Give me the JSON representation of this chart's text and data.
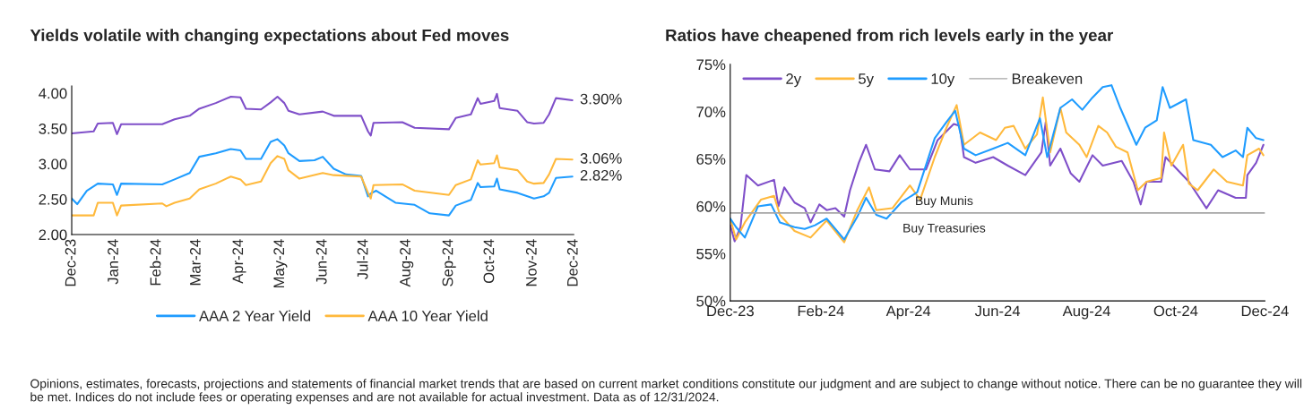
{
  "chart_data": [
    {
      "type": "line",
      "title": "Yields volatile with changing expectations about Fed moves",
      "ylim": [
        2.0,
        4.1
      ],
      "yticks": [
        {
          "value": 2.0,
          "label": "2.00"
        },
        {
          "value": 2.5,
          "label": "2.50"
        },
        {
          "value": 3.0,
          "label": "3.00"
        },
        {
          "value": 3.5,
          "label": "3.50"
        },
        {
          "value": 4.0,
          "label": "4.00"
        }
      ],
      "xlim": [
        "2023-12-01",
        "2024-12-01"
      ],
      "xticks": [
        {
          "value": "2023-12-01",
          "label": "Dec-23"
        },
        {
          "value": "2024-01-01",
          "label": "Jan-24"
        },
        {
          "value": "2024-02-01",
          "label": "Feb-24"
        },
        {
          "value": "2024-03-01",
          "label": "Mar-24"
        },
        {
          "value": "2024-04-01",
          "label": "Apr-24"
        },
        {
          "value": "2024-05-01",
          "label": "May-24"
        },
        {
          "value": "2024-06-01",
          "label": "Jun-24"
        },
        {
          "value": "2024-07-01",
          "label": "Jul-24"
        },
        {
          "value": "2024-08-01",
          "label": "Aug-24"
        },
        {
          "value": "2024-09-01",
          "label": "Sep-24"
        },
        {
          "value": "2024-10-01",
          "label": "Oct-24"
        },
        {
          "value": "2024-11-01",
          "label": "Nov-24"
        },
        {
          "value": "2024-12-01",
          "label": "Dec-24"
        }
      ],
      "grid": false,
      "legend": "bottom",
      "series": [
        {
          "color": "#7f4fc9",
          "x": [
            "2023-12-01",
            "2023-12-17",
            "2023-12-20",
            "2023-12-31",
            "2024-01-03",
            "2024-01-06",
            "2024-02-05",
            "2024-02-14",
            "2024-02-25",
            "2024-03-03",
            "2024-03-15",
            "2024-03-26",
            "2024-04-02",
            "2024-04-06",
            "2024-04-17",
            "2024-04-24",
            "2024-04-29",
            "2024-05-04",
            "2024-05-07",
            "2024-05-15",
            "2024-06-01",
            "2024-06-09",
            "2024-06-29",
            "2024-07-04",
            "2024-07-06",
            "2024-07-08",
            "2024-07-29",
            "2024-08-07",
            "2024-09-01",
            "2024-09-06",
            "2024-09-17",
            "2024-09-22",
            "2024-09-24",
            "2024-10-04",
            "2024-10-06",
            "2024-10-08",
            "2024-10-21",
            "2024-10-28",
            "2024-11-02",
            "2024-11-09",
            "2024-11-13",
            "2024-11-18",
            "2024-11-30"
          ],
          "values": [
            3.43,
            3.46,
            3.57,
            3.58,
            3.42,
            3.56,
            3.56,
            3.63,
            3.68,
            3.78,
            3.86,
            3.95,
            3.94,
            3.78,
            3.77,
            3.87,
            3.95,
            3.86,
            3.75,
            3.7,
            3.74,
            3.68,
            3.68,
            3.46,
            3.4,
            3.58,
            3.59,
            3.51,
            3.49,
            3.65,
            3.7,
            3.93,
            3.85,
            3.89,
            3.99,
            3.79,
            3.75,
            3.59,
            3.57,
            3.58,
            3.7,
            3.93,
            3.9
          ]
        },
        {
          "name": "AAA 2 Year Yield",
          "color": "#1f9cff",
          "x": [
            "2023-12-01",
            "2023-12-05",
            "2023-12-12",
            "2023-12-20",
            "2023-12-31",
            "2024-01-03",
            "2024-01-06",
            "2024-02-05",
            "2024-02-14",
            "2024-02-25",
            "2024-03-03",
            "2024-03-15",
            "2024-03-26",
            "2024-04-02",
            "2024-04-06",
            "2024-04-17",
            "2024-04-24",
            "2024-04-29",
            "2024-05-04",
            "2024-05-07",
            "2024-05-15",
            "2024-05-26",
            "2024-06-01",
            "2024-06-09",
            "2024-06-18",
            "2024-06-29",
            "2024-07-04",
            "2024-07-06",
            "2024-07-10",
            "2024-07-24",
            "2024-08-07",
            "2024-08-18",
            "2024-09-01",
            "2024-09-06",
            "2024-09-17",
            "2024-09-22",
            "2024-09-24",
            "2024-10-04",
            "2024-10-06",
            "2024-10-08",
            "2024-10-21",
            "2024-11-02",
            "2024-11-09",
            "2024-11-13",
            "2024-11-18",
            "2024-11-30"
          ],
          "values": [
            2.51,
            2.43,
            2.62,
            2.72,
            2.71,
            2.56,
            2.72,
            2.71,
            2.78,
            2.87,
            3.1,
            3.15,
            3.21,
            3.19,
            3.07,
            3.07,
            3.31,
            3.35,
            3.26,
            3.15,
            3.04,
            3.05,
            3.1,
            2.93,
            2.85,
            2.83,
            2.54,
            2.58,
            2.62,
            2.45,
            2.42,
            2.3,
            2.27,
            2.41,
            2.49,
            2.73,
            2.67,
            2.68,
            2.79,
            2.64,
            2.59,
            2.51,
            2.54,
            2.59,
            2.8,
            2.82
          ]
        },
        {
          "name": "AAA 10 Year Yield",
          "color": "#ffb93c",
          "x": [
            "2023-12-01",
            "2023-12-17",
            "2023-12-20",
            "2023-12-31",
            "2024-01-03",
            "2024-01-06",
            "2024-02-05",
            "2024-02-08",
            "2024-02-14",
            "2024-02-25",
            "2024-03-03",
            "2024-03-15",
            "2024-03-26",
            "2024-04-02",
            "2024-04-06",
            "2024-04-17",
            "2024-04-24",
            "2024-04-29",
            "2024-05-04",
            "2024-05-07",
            "2024-05-15",
            "2024-06-01",
            "2024-06-09",
            "2024-06-29",
            "2024-07-04",
            "2024-07-06",
            "2024-07-08",
            "2024-07-29",
            "2024-08-07",
            "2024-09-01",
            "2024-09-06",
            "2024-09-17",
            "2024-09-22",
            "2024-09-24",
            "2024-10-04",
            "2024-10-06",
            "2024-10-08",
            "2024-10-21",
            "2024-10-28",
            "2024-11-02",
            "2024-11-09",
            "2024-11-13",
            "2024-11-18",
            "2024-11-30"
          ],
          "values": [
            2.27,
            2.27,
            2.45,
            2.45,
            2.27,
            2.41,
            2.44,
            2.4,
            2.45,
            2.51,
            2.64,
            2.72,
            2.82,
            2.78,
            2.7,
            2.75,
            3.01,
            3.11,
            3.07,
            2.91,
            2.79,
            2.87,
            2.84,
            2.82,
            2.59,
            2.51,
            2.7,
            2.71,
            2.62,
            2.56,
            2.7,
            2.78,
            3.05,
            2.99,
            3.01,
            3.12,
            2.95,
            2.91,
            2.75,
            2.72,
            2.73,
            2.85,
            3.07,
            3.06
          ]
        }
      ],
      "annotations": [
        {
          "text": "3.90%",
          "x": "2024-11-30",
          "y": 3.9
        },
        {
          "text": "3.06%",
          "x": "2024-11-30",
          "y": 3.06
        },
        {
          "text": "2.82%",
          "x": "2024-11-30",
          "y": 2.82
        },
        "Opinions, estimates, forecasts, projections and statements of financial market trends that are based on current market conditions constitute our judgment and are subject to change without notice. There can be no guarantee they will be met. Indices do not include fees or operating expenses and are not available for actual investment. Data as of 12/31/2024."
      ]
    },
    {
      "type": "line",
      "title": "Ratios have cheapened from rich levels early in the year",
      "ylim": [
        50,
        75
      ],
      "yticks": [
        {
          "value": 50,
          "label": "50%"
        },
        {
          "value": 55,
          "label": "55%"
        },
        {
          "value": 60,
          "label": "60%"
        },
        {
          "value": 65,
          "label": "65%"
        },
        {
          "value": 70,
          "label": "70%"
        },
        {
          "value": 75,
          "label": "75%"
        }
      ],
      "xlim": [
        "2023-12-01",
        "2024-12-01"
      ],
      "xticks": [
        {
          "value": "2023-12-01",
          "label": "Dec-23"
        },
        {
          "value": "2024-02-01",
          "label": "Feb-24"
        },
        {
          "value": "2024-04-01",
          "label": "Apr-24"
        },
        {
          "value": "2024-06-01",
          "label": "Jun-24"
        },
        {
          "value": "2024-08-01",
          "label": "Aug-24"
        },
        {
          "value": "2024-10-01",
          "label": "Oct-24"
        },
        {
          "value": "2024-12-01",
          "label": "Dec-24"
        }
      ],
      "grid": false,
      "legend": "top left",
      "ref_lines": [
        {
          "axis": "y",
          "value": 59.3,
          "label": "Breakeven",
          "color": "#a6a6a6"
        }
      ],
      "series": [
        {
          "name": "2y",
          "color": "#7f4fc9",
          "x": [
            "2023-12-01",
            "2023-12-04",
            "2023-12-08",
            "2023-12-12",
            "2023-12-20",
            "2023-12-31",
            "2024-01-03",
            "2024-01-07",
            "2024-01-14",
            "2024-01-21",
            "2024-01-25",
            "2024-01-31",
            "2024-02-05",
            "2024-02-11",
            "2024-02-17",
            "2024-02-21",
            "2024-02-27",
            "2024-03-03",
            "2024-03-09",
            "2024-03-19",
            "2024-03-26",
            "2024-04-02",
            "2024-04-13",
            "2024-04-21",
            "2024-05-02",
            "2024-05-06",
            "2024-05-09",
            "2024-05-17",
            "2024-05-29",
            "2024-06-08",
            "2024-06-20",
            "2024-07-01",
            "2024-07-04",
            "2024-07-07",
            "2024-07-14",
            "2024-07-21",
            "2024-07-27",
            "2024-08-05",
            "2024-08-12",
            "2024-08-25",
            "2024-09-02",
            "2024-09-07",
            "2024-09-11",
            "2024-09-21",
            "2024-09-24",
            "2024-10-02",
            "2024-10-10",
            "2024-10-22",
            "2024-10-30",
            "2024-11-11",
            "2024-11-18",
            "2024-11-19",
            "2024-11-25",
            "2024-11-30"
          ],
          "values": [
            58.0,
            56.3,
            57.8,
            63.3,
            62.2,
            62.8,
            60.0,
            62.0,
            60.4,
            59.8,
            58.3,
            60.2,
            59.6,
            59.8,
            58.9,
            61.7,
            64.6,
            66.5,
            63.9,
            63.7,
            65.4,
            63.9,
            63.9,
            67.0,
            68.7,
            68.5,
            65.2,
            64.6,
            65.2,
            64.3,
            63.3,
            65.7,
            68.9,
            64.3,
            66.1,
            63.5,
            62.6,
            65.4,
            64.3,
            64.8,
            62.6,
            60.2,
            62.6,
            62.6,
            65.2,
            63.9,
            62.6,
            59.8,
            61.7,
            60.9,
            60.9,
            63.3,
            64.6,
            66.5
          ]
        },
        {
          "name": "5y",
          "color": "#ffb93c",
          "x": [
            "2023-12-01",
            "2023-12-05",
            "2023-12-11",
            "2023-12-17",
            "2023-12-22",
            "2023-12-31",
            "2024-01-04",
            "2024-01-14",
            "2024-01-25",
            "2024-02-05",
            "2024-02-17",
            "2024-02-26",
            "2024-03-05",
            "2024-03-10",
            "2024-03-21",
            "2024-04-02",
            "2024-04-09",
            "2024-04-19",
            "2024-04-27",
            "2024-05-04",
            "2024-05-09",
            "2024-05-20",
            "2024-05-31",
            "2024-06-06",
            "2024-06-12",
            "2024-06-20",
            "2024-06-28",
            "2024-07-02",
            "2024-07-07",
            "2024-07-14",
            "2024-07-18",
            "2024-07-27",
            "2024-08-01",
            "2024-08-09",
            "2024-08-15",
            "2024-08-21",
            "2024-08-29",
            "2024-09-05",
            "2024-09-11",
            "2024-09-21",
            "2024-09-23",
            "2024-09-28",
            "2024-10-06",
            "2024-10-10",
            "2024-10-16",
            "2024-10-27",
            "2024-11-05",
            "2024-11-16",
            "2024-11-19",
            "2024-11-27",
            "2024-11-30"
          ],
          "values": [
            58.7,
            56.5,
            58.3,
            59.6,
            60.7,
            61.1,
            59.1,
            57.4,
            56.7,
            58.5,
            56.2,
            59.6,
            62.0,
            59.6,
            59.8,
            62.2,
            60.7,
            65.2,
            68.3,
            70.7,
            66.5,
            67.8,
            67.0,
            68.3,
            68.5,
            66.1,
            67.6,
            71.5,
            65.7,
            70.4,
            67.8,
            66.5,
            65.2,
            68.5,
            67.8,
            66.3,
            65.7,
            61.7,
            62.6,
            63.0,
            67.8,
            64.3,
            66.5,
            62.4,
            61.7,
            63.9,
            62.6,
            62.2,
            65.4,
            66.1,
            65.4
          ]
        },
        {
          "name": "10y",
          "color": "#1f9cff",
          "x": [
            "2023-12-01",
            "2023-12-05",
            "2023-12-11",
            "2023-12-20",
            "2023-12-29",
            "2024-01-04",
            "2024-01-14",
            "2024-01-21",
            "2024-01-28",
            "2024-02-05",
            "2024-02-17",
            "2024-02-26",
            "2024-03-03",
            "2024-03-10",
            "2024-03-17",
            "2024-03-27",
            "2024-04-07",
            "2024-04-19",
            "2024-04-27",
            "2024-05-03",
            "2024-05-09",
            "2024-05-17",
            "2024-05-29",
            "2024-06-08",
            "2024-06-20",
            "2024-06-30",
            "2024-07-05",
            "2024-07-14",
            "2024-07-22",
            "2024-07-29",
            "2024-08-05",
            "2024-08-12",
            "2024-08-18",
            "2024-08-24",
            "2024-09-04",
            "2024-09-10",
            "2024-09-18",
            "2024-09-22",
            "2024-09-27",
            "2024-10-08",
            "2024-10-13",
            "2024-10-25",
            "2024-11-02",
            "2024-11-11",
            "2024-11-16",
            "2024-11-19",
            "2024-11-25",
            "2024-11-30"
          ],
          "values": [
            58.7,
            57.8,
            56.7,
            60.0,
            60.2,
            58.3,
            57.8,
            57.6,
            58.0,
            58.7,
            56.5,
            58.9,
            60.9,
            59.1,
            58.7,
            60.4,
            61.5,
            67.2,
            68.9,
            70.1,
            66.1,
            65.4,
            66.1,
            66.7,
            65.4,
            69.3,
            65.2,
            70.4,
            71.3,
            70.2,
            71.5,
            72.6,
            72.8,
            70.4,
            66.5,
            68.3,
            69.1,
            72.6,
            70.4,
            71.3,
            67.0,
            66.5,
            65.2,
            65.9,
            65.2,
            68.3,
            67.2,
            67.0
          ]
        }
      ],
      "annotations": [
        "Buy Munis",
        "Buy Treasuries"
      ]
    }
  ]
}
